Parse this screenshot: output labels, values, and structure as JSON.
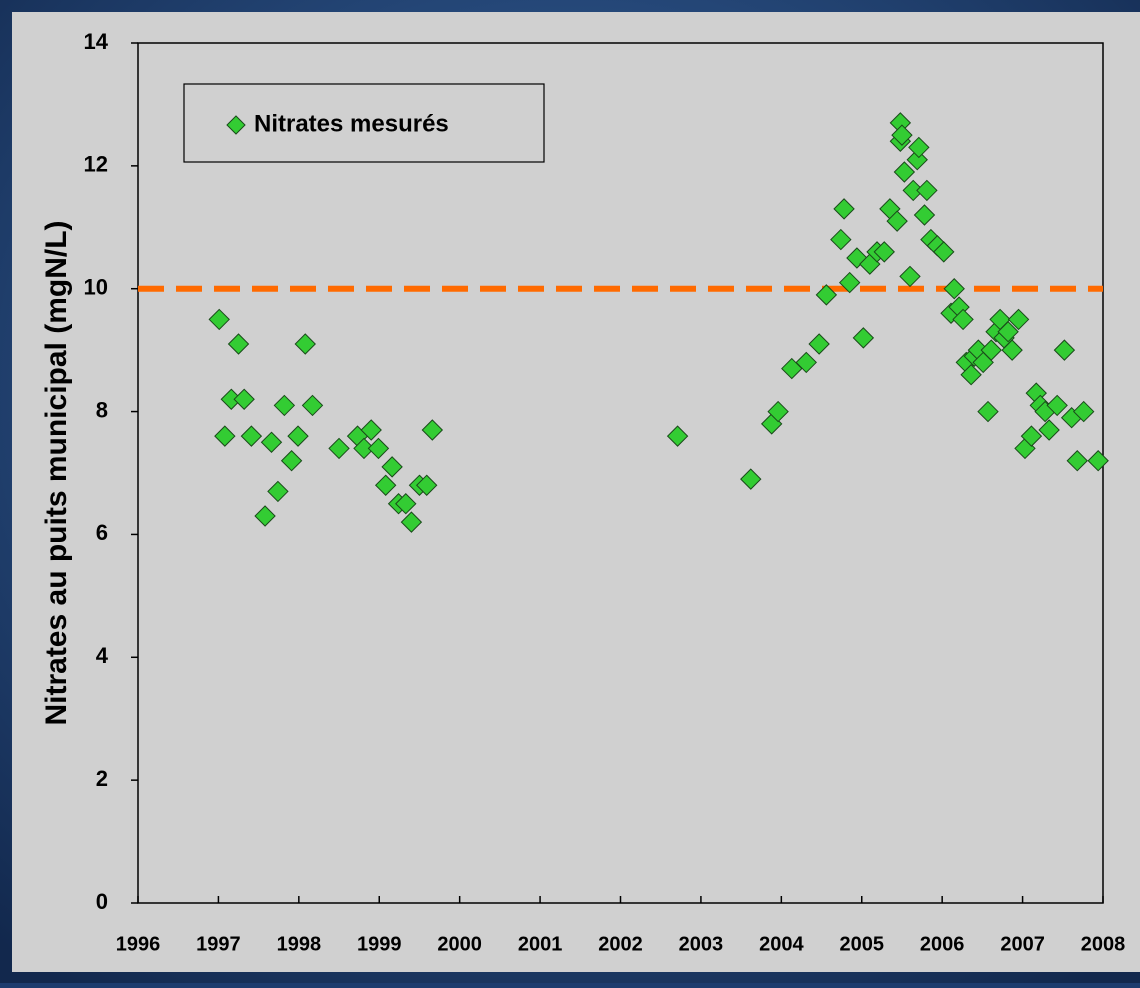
{
  "chart_data": {
    "type": "scatter",
    "ylabel": "Nitrates au puits municipal (mgN/L)",
    "x": [
      1997.01,
      1997.08,
      1997.16,
      1997.25,
      1997.32,
      1997.41,
      1997.58,
      1997.66,
      1997.74,
      1997.82,
      1997.91,
      1997.99,
      1998.08,
      1998.17,
      1998.5,
      1998.73,
      1998.81,
      1998.9,
      1998.99,
      1999.08,
      1999.16,
      1999.24,
      1999.33,
      1999.4,
      1999.5,
      1999.59,
      1999.66,
      2002.71,
      2003.62,
      2003.88,
      2003.96,
      2004.13,
      2004.31,
      2004.47,
      2004.56,
      2004.74,
      2004.78,
      2004.85,
      2004.94,
      2005.02,
      2005.1,
      2005.19,
      2005.28,
      2005.35,
      2005.44,
      2005.48,
      2005.48,
      2005.5,
      2005.53,
      2005.6,
      2005.64,
      2005.69,
      2005.71,
      2005.78,
      2005.81,
      2005.86,
      2005.94,
      2006.02,
      2006.11,
      2006.15,
      2006.21,
      2006.26,
      2006.3,
      2006.36,
      2006.4,
      2006.45,
      2006.51,
      2006.57,
      2006.61,
      2006.67,
      2006.72,
      2006.77,
      2006.82,
      2006.87,
      2006.95,
      2007.03,
      2007.11,
      2007.17,
      2007.22,
      2007.28,
      2007.33,
      2007.43,
      2007.52,
      2007.61,
      2007.68,
      2007.76,
      2007.94
    ],
    "series": [
      {
        "name": "Nitrates mesurés",
        "color": "#33cc33",
        "values": [
          9.5,
          7.6,
          8.2,
          9.1,
          8.2,
          7.6,
          6.3,
          7.5,
          6.7,
          8.1,
          7.2,
          7.6,
          9.1,
          8.1,
          7.4,
          7.6,
          7.4,
          7.7,
          7.4,
          6.8,
          7.1,
          6.5,
          6.5,
          6.2,
          6.8,
          6.8,
          7.7,
          7.6,
          6.9,
          7.8,
          8.0,
          8.7,
          8.8,
          9.1,
          9.9,
          10.8,
          11.3,
          10.1,
          10.5,
          9.2,
          10.4,
          10.6,
          10.6,
          11.3,
          11.1,
          12.7,
          12.4,
          12.5,
          11.9,
          10.2,
          11.6,
          12.1,
          12.3,
          11.2,
          11.6,
          10.8,
          10.7,
          10.6,
          9.6,
          10.0,
          9.7,
          9.5,
          8.8,
          8.6,
          8.9,
          9.0,
          8.8,
          8.0,
          9.0,
          9.3,
          9.5,
          9.2,
          9.3,
          9.0,
          9.5,
          7.4,
          7.6,
          8.3,
          8.1,
          8.0,
          7.7,
          8.1,
          9.0,
          7.9,
          7.2,
          8.0,
          7.2
        ]
      }
    ],
    "xlim": [
      1996,
      2008
    ],
    "xticks": [
      1996,
      1997,
      1998,
      1999,
      2000,
      2001,
      2002,
      2003,
      2004,
      2005,
      2006,
      2007,
      2008
    ],
    "ylim": [
      0,
      14
    ],
    "yticks": [
      0,
      2,
      4,
      6,
      8,
      10,
      12,
      14
    ],
    "reference_line": {
      "y": 10,
      "color": "#ff6a00"
    },
    "legend": "upper left"
  }
}
